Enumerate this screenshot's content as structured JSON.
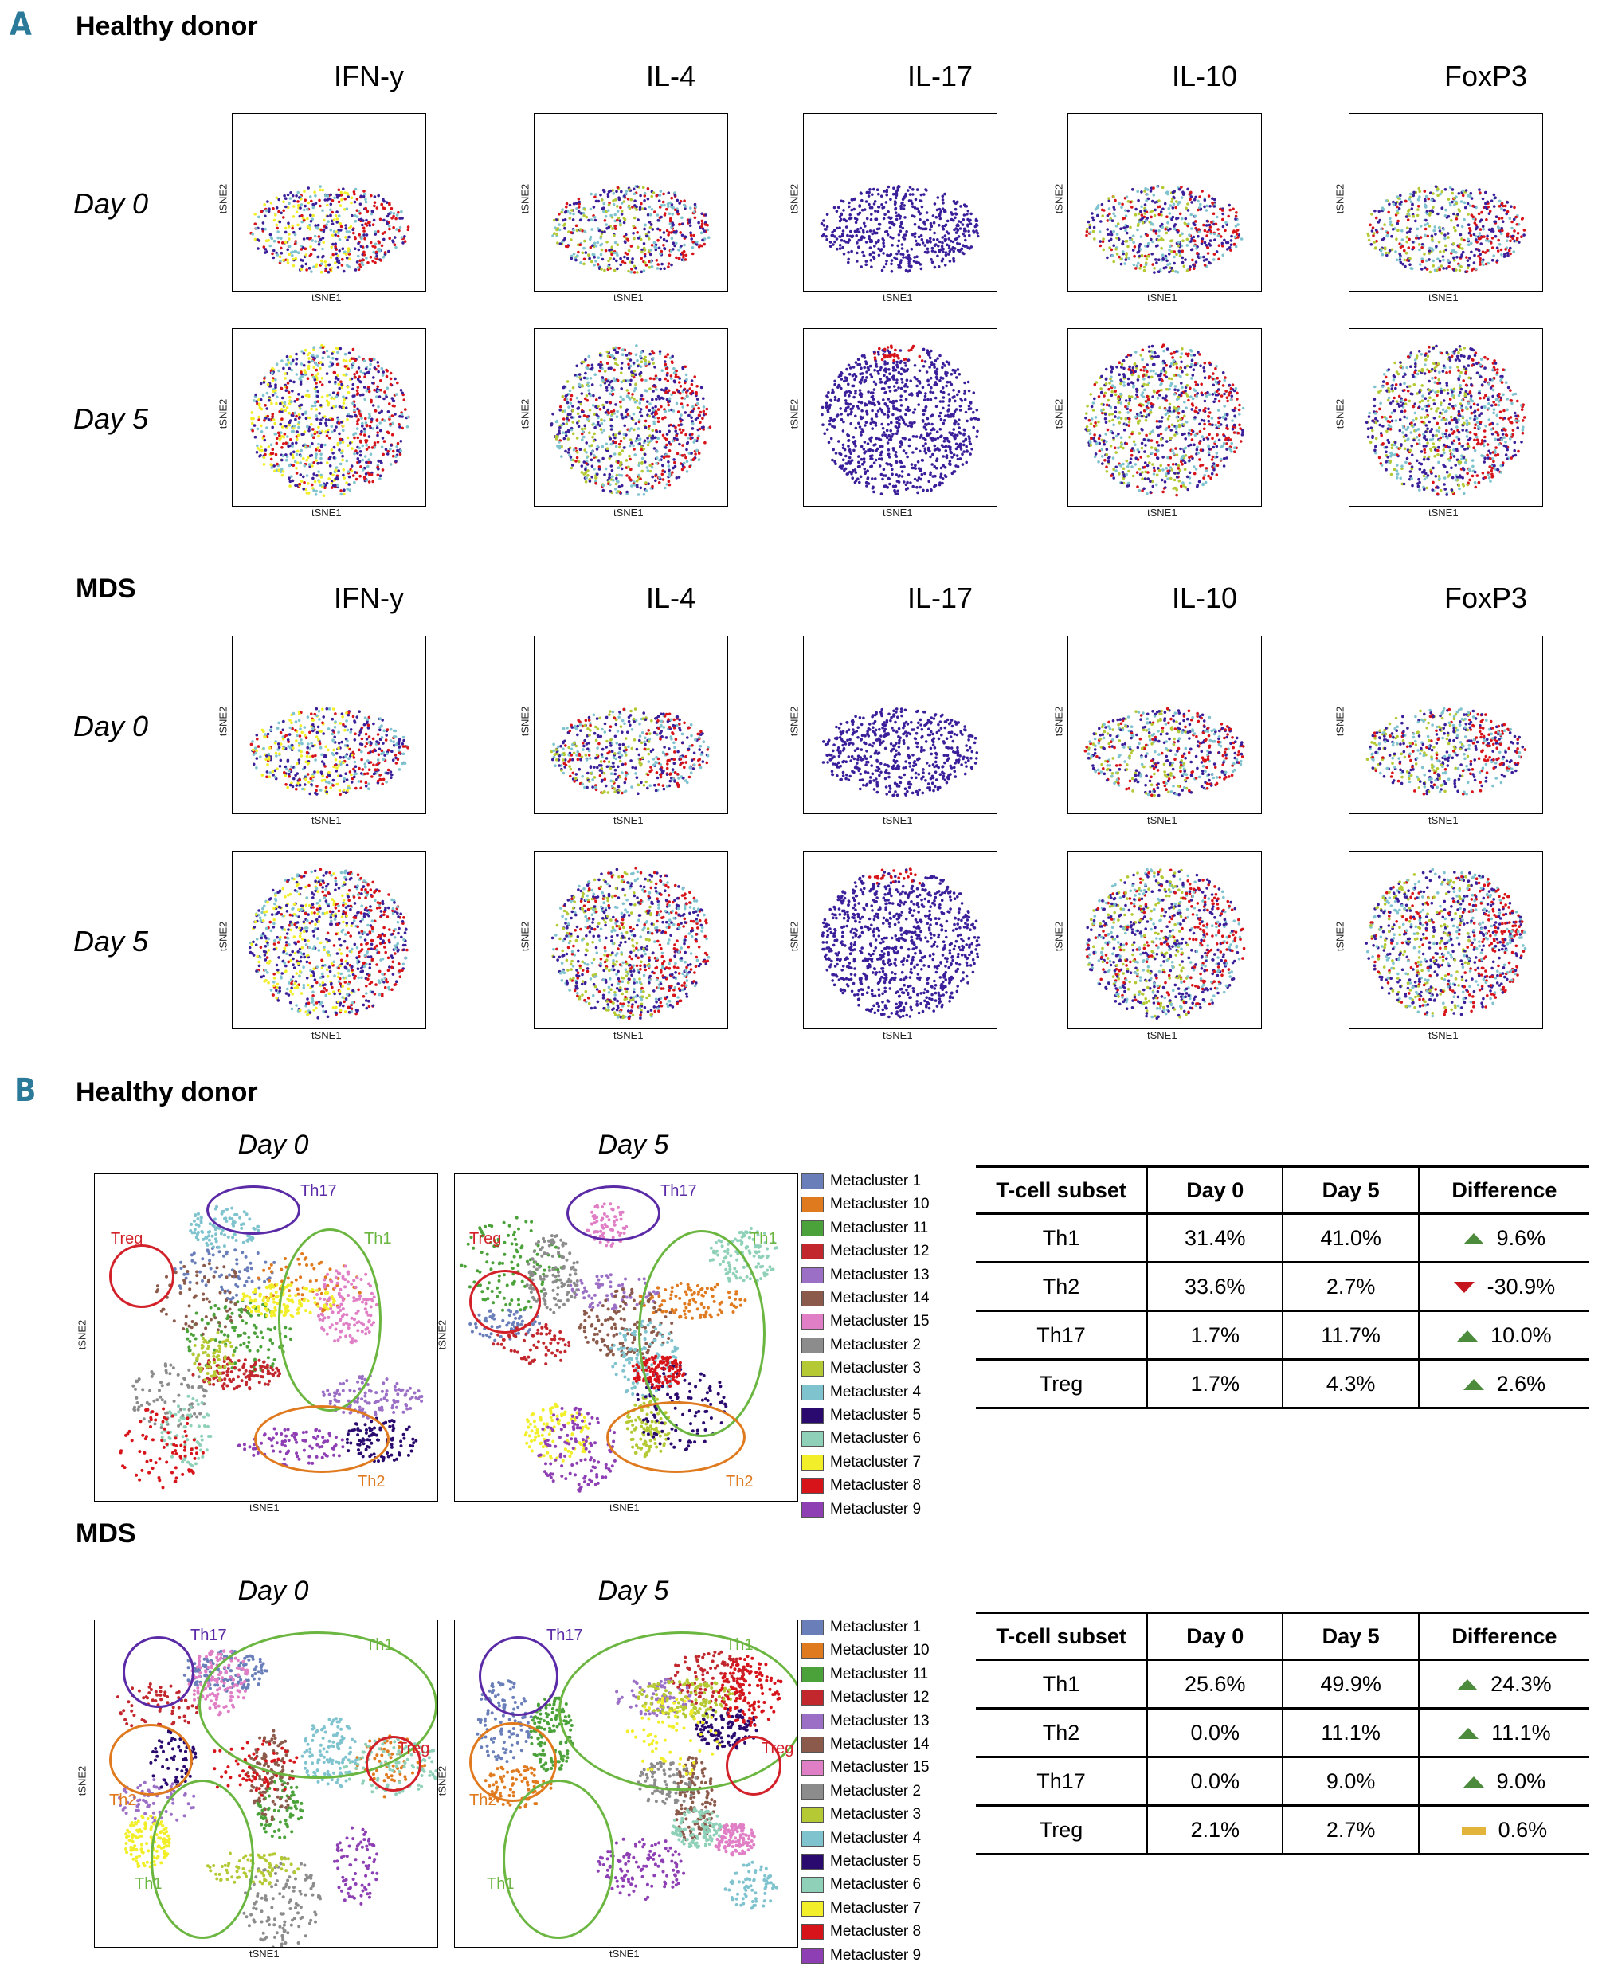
{
  "panelA": {
    "letter": "A",
    "groups": [
      {
        "title": "Healthy donor",
        "markers": [
          "IFN-y",
          "IL-4",
          "IL-17",
          "IL-10",
          "FoxP3"
        ],
        "days": [
          "Day 0",
          "Day 5"
        ]
      },
      {
        "title": "MDS",
        "markers": [
          "IFN-y",
          "IL-4",
          "IL-17",
          "IL-10",
          "FoxP3"
        ],
        "days": [
          "Day 0",
          "Day 5"
        ]
      }
    ],
    "xlabel": "tSNE1",
    "ylabel": "tSNE2"
  },
  "panelB": {
    "letter": "B",
    "groups": [
      {
        "title": "Healthy donor",
        "day0": "Day 0",
        "day5": "Day 5",
        "gates": {
          "th17": "Th17",
          "th1": "Th1",
          "th2": "Th2",
          "treg": "Treg"
        },
        "table": {
          "headers": [
            "T-cell subset",
            "Day 0",
            "Day 5",
            "Difference"
          ],
          "rows": [
            {
              "subset": "Th1",
              "day0": "31.4%",
              "day5": "41.0%",
              "diff": "9.6%",
              "trend": "up"
            },
            {
              "subset": "Th2",
              "day0": "33.6%",
              "day5": "2.7%",
              "diff": "-30.9%",
              "trend": "down"
            },
            {
              "subset": "Th17",
              "day0": "1.7%",
              "day5": "11.7%",
              "diff": "10.0%",
              "trend": "up"
            },
            {
              "subset": "Treg",
              "day0": "1.7%",
              "day5": "4.3%",
              "diff": "2.6%",
              "trend": "up"
            }
          ]
        }
      },
      {
        "title": "MDS",
        "day0": "Day 0",
        "day5": "Day 5",
        "gates": {
          "th17": "Th17",
          "th1": "Th1",
          "th2": "Th2",
          "treg": "Treg"
        },
        "table": {
          "headers": [
            "T-cell subset",
            "Day 0",
            "Day 5",
            "Difference"
          ],
          "rows": [
            {
              "subset": "Th1",
              "day0": "25.6%",
              "day5": "49.9%",
              "diff": "24.3%",
              "trend": "up"
            },
            {
              "subset": "Th2",
              "day0": "0.0%",
              "day5": "11.1%",
              "diff": "11.1%",
              "trend": "up"
            },
            {
              "subset": "Th17",
              "day0": "0.0%",
              "day5": "9.0%",
              "diff": "9.0%",
              "trend": "up"
            },
            {
              "subset": "Treg",
              "day0": "2.1%",
              "day5": "2.7%",
              "diff": "0.6%",
              "trend": "flat"
            }
          ]
        }
      }
    ],
    "xlabel": "tSNE1",
    "ylabel": "tSNE2",
    "legend": [
      {
        "label": "Metacluster 1",
        "color": "#6a7fb9"
      },
      {
        "label": "Metacluster 10",
        "color": "#e07a1f"
      },
      {
        "label": "Metacluster 11",
        "color": "#4ca23a"
      },
      {
        "label": "Metacluster 12",
        "color": "#c1272d"
      },
      {
        "label": "Metacluster 13",
        "color": "#9b6fc6"
      },
      {
        "label": "Metacluster 14",
        "color": "#8b5a4a"
      },
      {
        "label": "Metacluster 15",
        "color": "#e07fc6"
      },
      {
        "label": "Metacluster 2",
        "color": "#8c8c8c"
      },
      {
        "label": "Metacluster 3",
        "color": "#b5c935"
      },
      {
        "label": "Metacluster 4",
        "color": "#7fc3cf"
      },
      {
        "label": "Metacluster 5",
        "color": "#2a0a6e"
      },
      {
        "label": "Metacluster 6",
        "color": "#8fd1b8"
      },
      {
        "label": "Metacluster 7",
        "color": "#f2ef2a"
      },
      {
        "label": "Metacluster 8",
        "color": "#d7141a"
      },
      {
        "label": "Metacluster 9",
        "color": "#8e3fb4"
      }
    ],
    "gate_colors": {
      "th17": "#5b2aa6",
      "th1": "#6bb640",
      "th2": "#e07a1f",
      "treg": "#d3212a"
    }
  }
}
